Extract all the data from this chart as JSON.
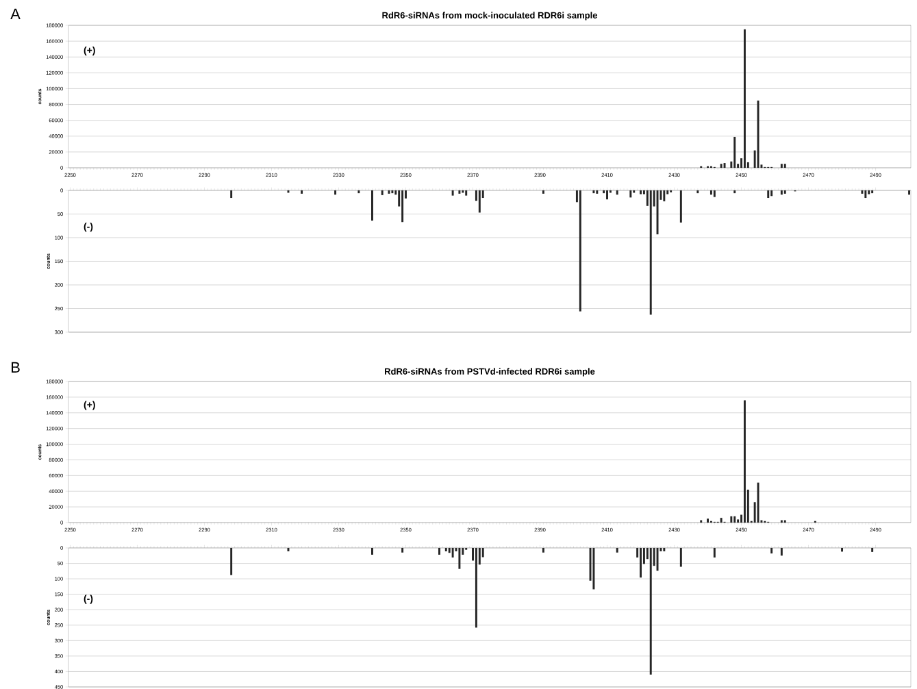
{
  "chart_data": [
    {
      "type": "bar",
      "title": "RdR6-siRNAs from mock-inoculated RDR6i sample",
      "ylabel": "counts",
      "annotations": [
        "A",
        "(+)"
      ],
      "color": "#262626",
      "grid": "y",
      "xlim": [
        2249.5,
        2500.5
      ],
      "xticks": [
        2250,
        2270,
        2290,
        2310,
        2330,
        2350,
        2370,
        2390,
        2410,
        2430,
        2450,
        2470,
        2490
      ],
      "ylim": [
        0,
        180000
      ],
      "yticks": [
        0,
        20000,
        40000,
        60000,
        80000,
        100000,
        120000,
        140000,
        160000,
        180000
      ],
      "x": [
        2438,
        2440,
        2441,
        2442,
        2444,
        2445,
        2447,
        2448,
        2449,
        2450,
        2451,
        2452,
        2454,
        2455,
        2456,
        2457,
        2458,
        2459,
        2462,
        2463
      ],
      "values": [
        2000,
        2000,
        2000,
        1000,
        5000,
        6000,
        8000,
        39000,
        5000,
        12000,
        175000,
        7000,
        22000,
        85000,
        4000,
        1000,
        1000,
        1000,
        5000,
        5000
      ]
    },
    {
      "type": "bar",
      "ylabel": "counts",
      "annotations": [
        "(-)"
      ],
      "color": "#262626",
      "grid": "y",
      "tick_labels": "y",
      "xlim": [
        2249.5,
        2500.5
      ],
      "xticks": [
        2250,
        2270,
        2290,
        2310,
        2330,
        2350,
        2370,
        2390,
        2410,
        2430,
        2450,
        2470,
        2490
      ],
      "ylim": [
        300,
        0
      ],
      "yticks": [
        0,
        50,
        100,
        150,
        200,
        250,
        300
      ],
      "x": [
        2298,
        2315,
        2319,
        2329,
        2336,
        2340,
        2343,
        2345,
        2346,
        2347,
        2348,
        2349,
        2350,
        2364,
        2366,
        2367,
        2368,
        2371,
        2372,
        2373,
        2391,
        2401,
        2402,
        2406,
        2407,
        2409,
        2410,
        2411,
        2413,
        2417,
        2418,
        2420,
        2421,
        2422,
        2423,
        2424,
        2425,
        2426,
        2427,
        2428,
        2429,
        2432,
        2437,
        2441,
        2442,
        2448,
        2458,
        2459,
        2462,
        2463,
        2466,
        2486,
        2487,
        2488,
        2489,
        2500
      ],
      "values": [
        16,
        5,
        7,
        9,
        6,
        64,
        10,
        7,
        6,
        9,
        34,
        67,
        17,
        11,
        7,
        5,
        11,
        22,
        47,
        16,
        7,
        25,
        256,
        6,
        7,
        6,
        19,
        5,
        9,
        15,
        5,
        8,
        8,
        33,
        263,
        34,
        93,
        20,
        23,
        8,
        4,
        68,
        6,
        9,
        14,
        6,
        16,
        12,
        9,
        7,
        2,
        7,
        16,
        8,
        6,
        9
      ]
    },
    {
      "type": "bar",
      "title": "RdR6-siRNAs from PSTVd-infected RDR6i sample",
      "ylabel": "counts",
      "annotations": [
        "B",
        "(+)"
      ],
      "color": "#262626",
      "grid": "y",
      "xlim": [
        2249.5,
        2500.5
      ],
      "xticks": [
        2250,
        2270,
        2290,
        2310,
        2330,
        2350,
        2370,
        2390,
        2410,
        2430,
        2450,
        2470,
        2490
      ],
      "ylim": [
        0,
        180000
      ],
      "yticks": [
        0,
        20000,
        40000,
        60000,
        80000,
        100000,
        120000,
        140000,
        160000,
        180000
      ],
      "x": [
        2438,
        2440,
        2441,
        2442,
        2443,
        2444,
        2445,
        2447,
        2448,
        2449,
        2450,
        2451,
        2452,
        2453,
        2454,
        2455,
        2456,
        2457,
        2458,
        2462,
        2463,
        2472
      ],
      "values": [
        3000,
        5000,
        2000,
        1000,
        1000,
        6000,
        1000,
        8000,
        8000,
        4000,
        10000,
        156000,
        42000,
        2000,
        26000,
        51000,
        3000,
        2000,
        1000,
        3000,
        3000,
        2000
      ]
    },
    {
      "type": "bar",
      "ylabel": "counts",
      "annotations": [
        "(-)"
      ],
      "color": "#262626",
      "grid": "y",
      "tick_labels": "y",
      "xlim": [
        2249.5,
        2500.5
      ],
      "xticks": [
        2250,
        2270,
        2290,
        2310,
        2330,
        2350,
        2370,
        2390,
        2410,
        2430,
        2450,
        2470,
        2490
      ],
      "ylim": [
        450,
        0
      ],
      "yticks": [
        0,
        50,
        100,
        150,
        200,
        250,
        300,
        350,
        400,
        450
      ],
      "x": [
        2298,
        2315,
        2340,
        2349,
        2360,
        2362,
        2363,
        2364,
        2365,
        2366,
        2367,
        2368,
        2370,
        2371,
        2372,
        2373,
        2391,
        2405,
        2406,
        2413,
        2419,
        2420,
        2421,
        2422,
        2423,
        2424,
        2425,
        2426,
        2427,
        2432,
        2442,
        2459,
        2462,
        2480,
        2489
      ],
      "values": [
        88,
        11,
        22,
        15,
        22,
        11,
        16,
        31,
        11,
        68,
        22,
        6,
        41,
        258,
        54,
        30,
        15,
        106,
        134,
        15,
        31,
        96,
        52,
        36,
        410,
        58,
        74,
        11,
        11,
        61,
        31,
        18,
        25,
        12,
        13
      ]
    }
  ]
}
